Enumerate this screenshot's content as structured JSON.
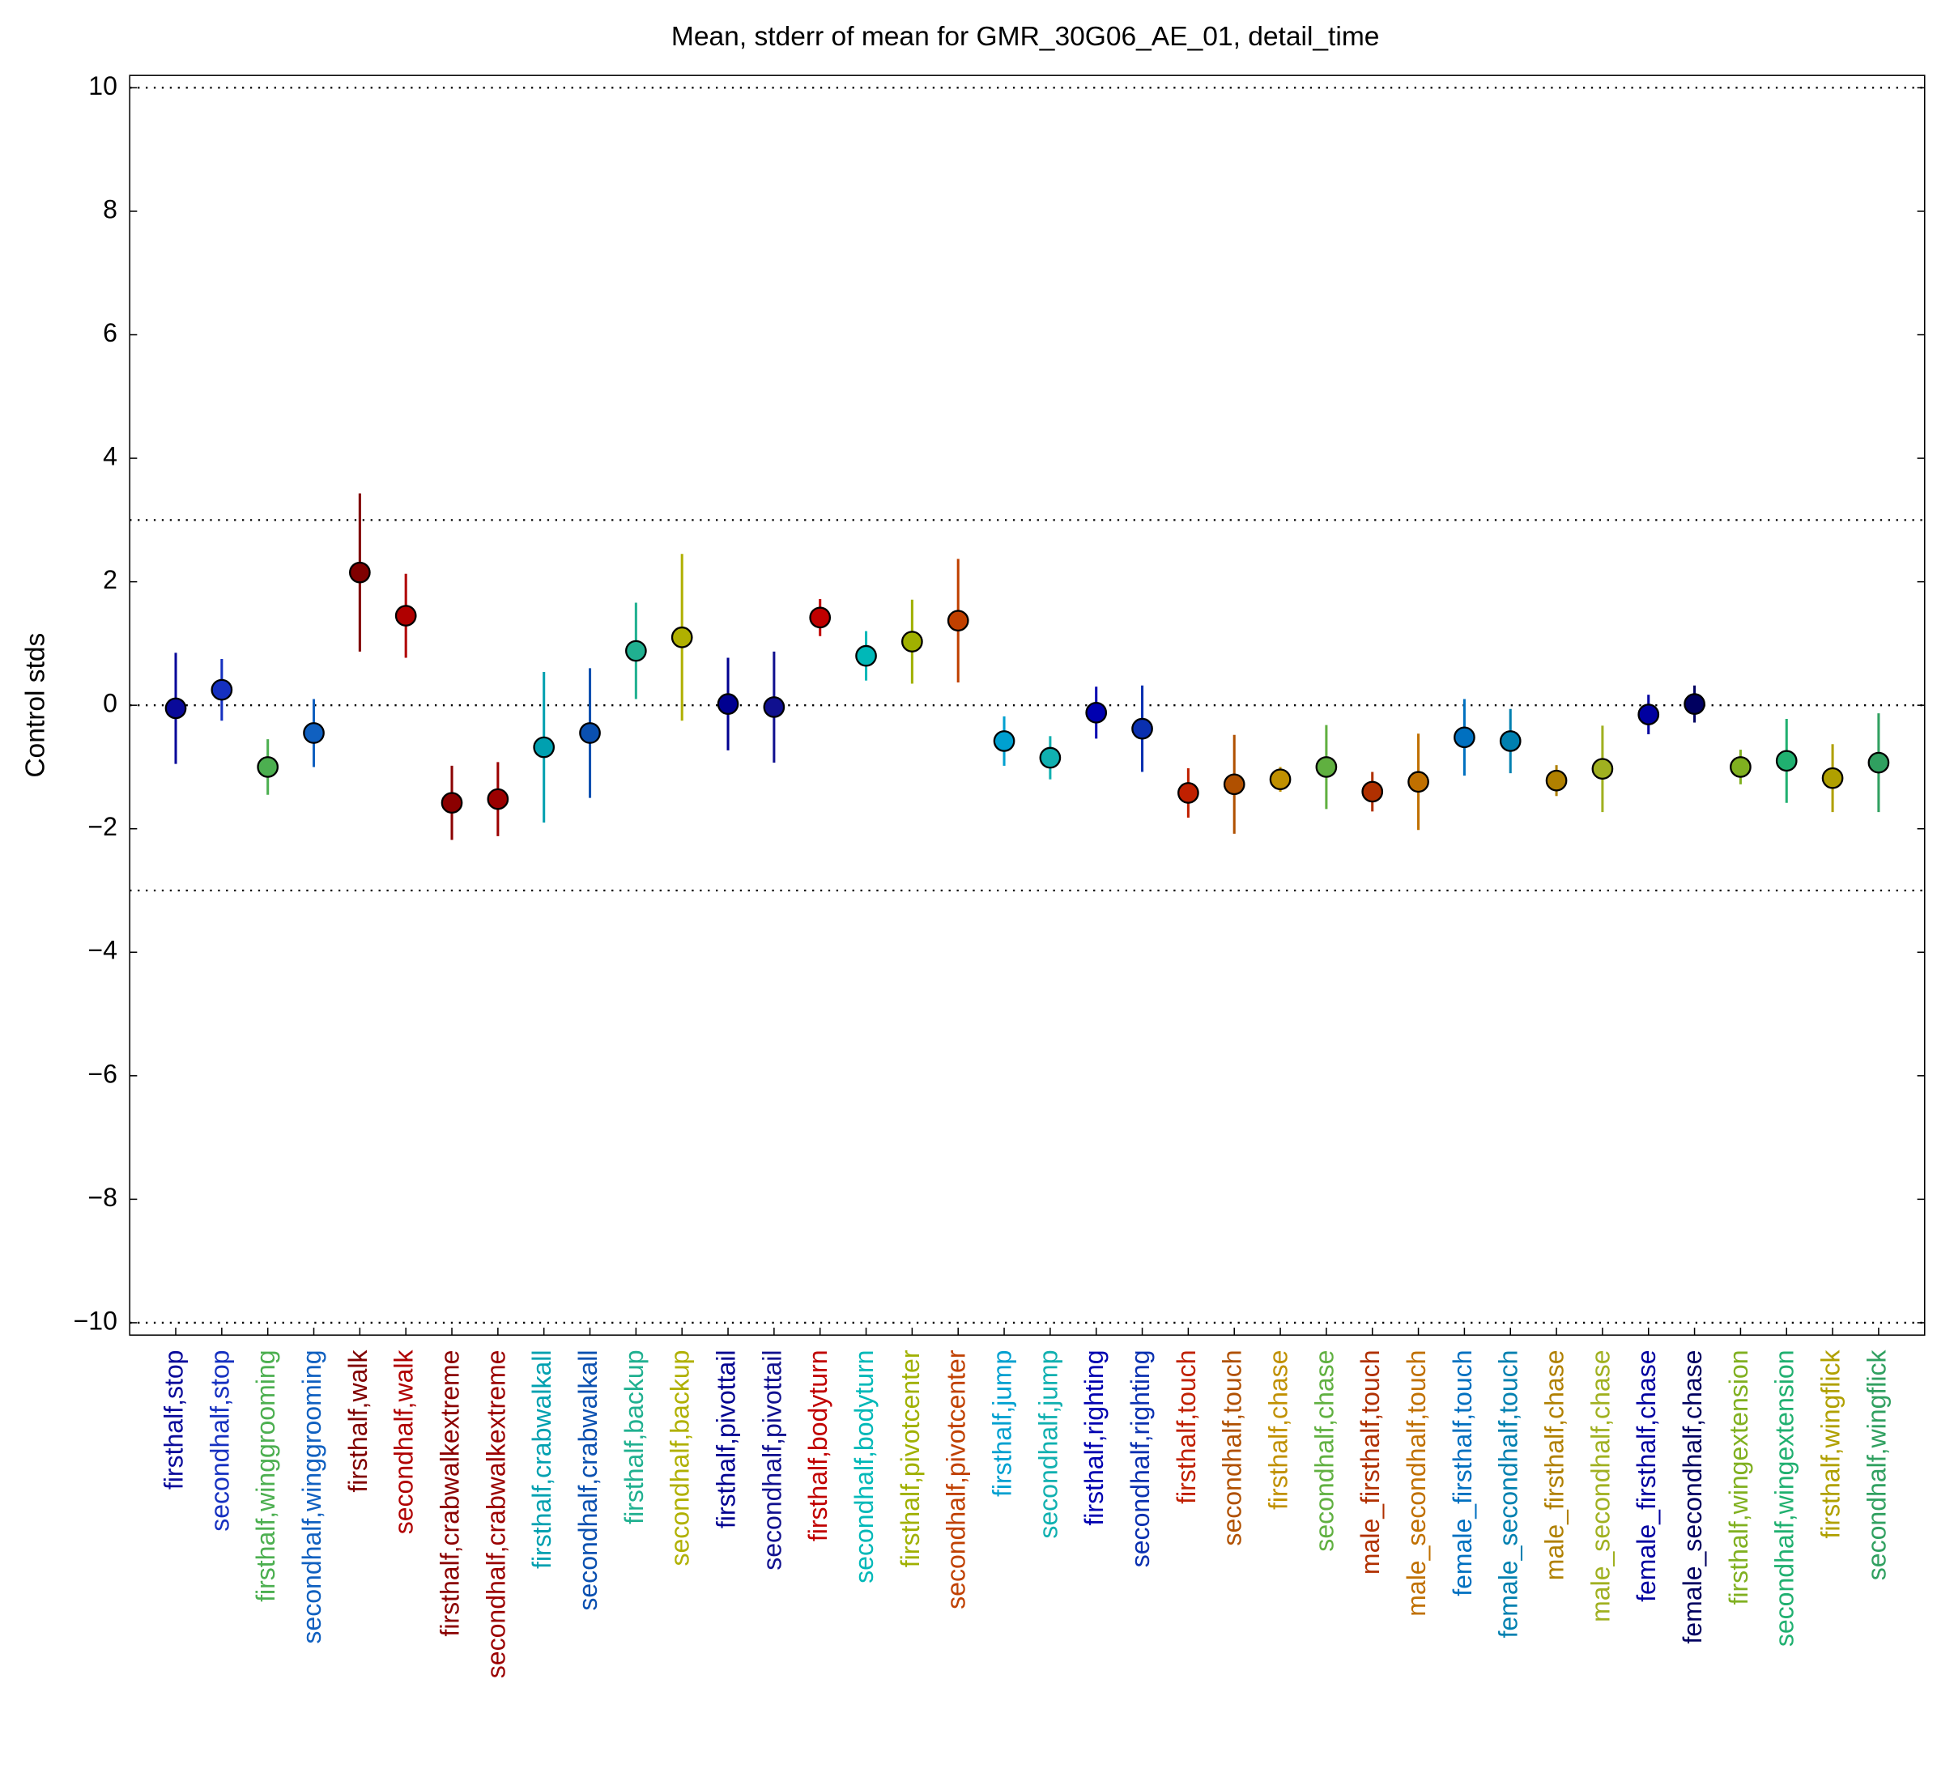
{
  "chart_data": {
    "type": "errorbar",
    "title": "Mean, stderr of mean for GMR_30G06_AE_01, detail_time",
    "y_label": "Control stds",
    "categories": [
      "firsthalf,stop",
      "secondhalf,stop",
      "firsthalf,winggrooming",
      "secondhalf,winggrooming",
      "firsthalf,walk",
      "secondhalf,walk",
      "firsthalf,crabwalkextreme",
      "secondhalf,crabwalkextreme",
      "firsthalf,crabwalkall",
      "secondhalf,crabwalkall",
      "firsthalf,backup",
      "secondhalf,backup",
      "firsthalf,pivottail",
      "secondhalf,pivottail",
      "firsthalf,bodyturn",
      "secondhalf,bodyturn",
      "firsthalf,pivotcenter",
      "secondhalf,pivotcenter",
      "firsthalf,jump",
      "secondhalf,jump",
      "firsthalf,righting",
      "secondhalf,righting",
      "firsthalf,touch",
      "secondhalf,touch",
      "firsthalf,chase",
      "secondhalf,chase",
      "male_firsthalf,touch",
      "male_secondhalf,touch",
      "female_firsthalf,touch",
      "female_secondhalf,touch",
      "male_firsthalf,chase",
      "male_secondhalf,chase",
      "female_firsthalf,chase",
      "female_secondhalf,chase",
      "firsthalf,wingextension",
      "secondhalf,wingextension",
      "firsthalf,wingflick",
      "secondhalf,wingflick"
    ],
    "values": [
      -0.05,
      0.25,
      -1.0,
      -0.45,
      2.15,
      1.45,
      -1.58,
      -1.52,
      -0.68,
      -0.45,
      0.88,
      1.1,
      0.02,
      -0.03,
      1.42,
      0.8,
      1.03,
      1.37,
      -0.58,
      -0.85,
      -0.12,
      -0.38,
      -1.42,
      -1.28,
      -1.2,
      -1.0,
      -1.4,
      -1.24,
      -0.52,
      -0.58,
      -1.22,
      -1.03,
      -0.15,
      0.02,
      -1.0,
      -0.9,
      -1.18,
      -0.93
    ],
    "errors": [
      0.9,
      0.5,
      0.45,
      0.55,
      1.28,
      0.68,
      0.6,
      0.6,
      1.22,
      1.05,
      0.78,
      1.35,
      0.75,
      0.9,
      0.3,
      0.4,
      0.68,
      1.0,
      0.4,
      0.35,
      0.42,
      0.7,
      0.4,
      0.8,
      0.2,
      0.68,
      0.32,
      0.78,
      0.62,
      0.52,
      0.25,
      0.7,
      0.32,
      0.3,
      0.28,
      0.68,
      0.55,
      0.8
    ],
    "colors": [
      "#0a0a9a",
      "#1530c0",
      "#4caf50",
      "#1060c0",
      "#800000",
      "#b00000",
      "#8b0000",
      "#9b0000",
      "#00a0b0",
      "#0a50b0",
      "#20b090",
      "#b0b000",
      "#000090",
      "#10108f",
      "#c00000",
      "#00b8b8",
      "#a0b000",
      "#c04000",
      "#00a0d0",
      "#10b0b0",
      "#0000b0",
      "#0a30b0",
      "#c02000",
      "#b05000",
      "#c09000",
      "#60b040",
      "#b03000",
      "#c07000",
      "#0070c0",
      "#0080b0",
      "#b08000",
      "#a0b020",
      "#0000a0",
      "#000060",
      "#80b020",
      "#20b070",
      "#b0a000",
      "#30a060"
    ],
    "ylim": [
      -10.2,
      10.2
    ],
    "yticks": [
      {
        "value": -10,
        "label": "−10"
      },
      {
        "value": -8,
        "label": "−8"
      },
      {
        "value": -6,
        "label": "−6"
      },
      {
        "value": -4,
        "label": "−4"
      },
      {
        "value": -2,
        "label": "−2"
      },
      0,
      2,
      4,
      6,
      8,
      10
    ],
    "hlines": [
      10,
      3,
      0,
      -3,
      -10
    ]
  }
}
